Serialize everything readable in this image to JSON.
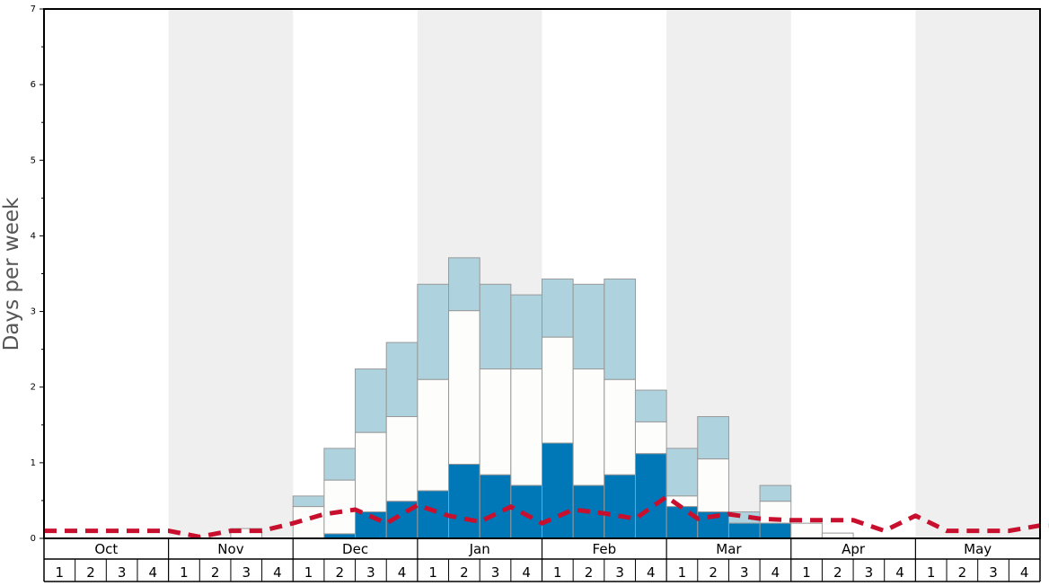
{
  "chart_data": {
    "type": "bar",
    "ylabel": "Days per week",
    "xlabel": "",
    "title": "",
    "ylim": [
      0,
      7
    ],
    "y_ticks": [
      "0",
      "1",
      "2",
      "3",
      "4",
      "5",
      "6",
      "7"
    ],
    "months": [
      "Oct",
      "Nov",
      "Dec",
      "Jan",
      "Feb",
      "Mar",
      "Apr",
      "May"
    ],
    "week_labels": [
      "1",
      "2",
      "3",
      "4"
    ],
    "month_band_shading": [
      "none",
      "gray",
      "none",
      "gray",
      "none",
      "gray",
      "none",
      "gray"
    ],
    "colors": {
      "dark_segment": "#0077b6",
      "white_segment": "#fdfdfb",
      "light_segment": "#aed3df",
      "dashed_line": "#c8102e",
      "band_gray": "#efefef",
      "bar_outline": "#999999"
    },
    "stack_order": [
      "dark",
      "white",
      "light"
    ],
    "series": [
      {
        "values_dark": [
          0,
          0,
          0,
          0,
          0,
          0,
          0,
          0,
          0,
          0.06,
          0.35,
          0.49,
          0.63,
          0.98,
          0.84,
          0.7,
          1.26,
          0.7,
          0.84,
          1.12,
          0.42,
          0.35,
          0.2,
          0.2,
          0,
          0,
          0,
          0,
          0,
          0,
          0,
          0
        ],
        "values_total_mid": [
          0,
          0,
          0,
          0,
          0,
          0,
          0.13,
          0,
          0.42,
          0.77,
          1.4,
          1.61,
          2.1,
          3.01,
          2.24,
          2.24,
          2.66,
          2.24,
          2.1,
          1.54,
          0.56,
          1.05,
          0.2,
          0.49,
          0.2,
          0.07,
          0,
          0,
          0,
          0,
          0,
          0
        ],
        "values_total": [
          0,
          0,
          0,
          0,
          0,
          0,
          0.13,
          0,
          0.56,
          1.19,
          2.24,
          2.59,
          3.36,
          3.71,
          3.36,
          3.22,
          3.43,
          3.36,
          3.43,
          1.96,
          1.19,
          1.61,
          0.35,
          0.7,
          0.2,
          0.07,
          0,
          0,
          0,
          0,
          0,
          0
        ]
      }
    ],
    "line_values": [
      0.1,
      0.1,
      0.1,
      0.1,
      0.1,
      0.02,
      0.1,
      0.1,
      0.2,
      0.32,
      0.38,
      0.2,
      0.44,
      0.3,
      0.22,
      0.42,
      0.2,
      0.38,
      0.33,
      0.26,
      0.55,
      0.26,
      0.32,
      0.26,
      0.24,
      0.24,
      0.24,
      0.1,
      0.3,
      0.1,
      0.1,
      0.1,
      0.17,
      0.17
    ]
  }
}
